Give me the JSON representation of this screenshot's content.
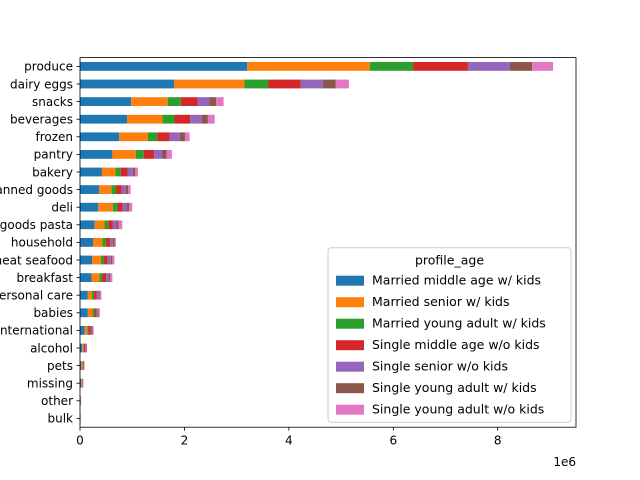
{
  "chart_data": {
    "type": "bar",
    "orientation": "horizontal",
    "stacked": true,
    "categories": [
      "produce",
      "dairy eggs",
      "snacks",
      "beverages",
      "frozen",
      "pantry",
      "bakery",
      "canned goods",
      "deli",
      "dry goods pasta",
      "household",
      "meat seafood",
      "breakfast",
      "personal care",
      "babies",
      "international",
      "alcohol",
      "pets",
      "missing",
      "other",
      "bulk"
    ],
    "series": [
      {
        "name": "Married middle age w/ kids",
        "color": "#1f77b4",
        "values": [
          3200000,
          1800000,
          980000,
          900000,
          750000,
          620000,
          420000,
          370000,
          350000,
          280000,
          250000,
          230000,
          220000,
          150000,
          150000,
          90000,
          40000,
          25000,
          20000,
          8000,
          5000
        ]
      },
      {
        "name": "Married senior w/ kids",
        "color": "#ff7f0e",
        "values": [
          2350000,
          1350000,
          700000,
          680000,
          550000,
          450000,
          260000,
          230000,
          280000,
          190000,
          180000,
          170000,
          150000,
          80000,
          90000,
          50000,
          25000,
          20000,
          15000,
          3000,
          2000
        ]
      },
      {
        "name": "Married young adult w/ kids",
        "color": "#2ca02c",
        "values": [
          830000,
          460000,
          250000,
          230000,
          180000,
          150000,
          100000,
          90000,
          90000,
          70000,
          70000,
          60000,
          60000,
          40000,
          40000,
          20000,
          10000,
          8000,
          6000,
          2000,
          1000
        ]
      },
      {
        "name": "Single middle age w/o kids",
        "color": "#d62728",
        "values": [
          1050000,
          620000,
          320000,
          300000,
          240000,
          200000,
          130000,
          110000,
          100000,
          90000,
          80000,
          70000,
          70000,
          50000,
          40000,
          40000,
          25000,
          15000,
          10000,
          3000,
          2000
        ]
      },
      {
        "name": "Single senior w/o kids",
        "color": "#9467bd",
        "values": [
          800000,
          420000,
          230000,
          220000,
          190000,
          160000,
          100000,
          80000,
          80000,
          70000,
          50000,
          60000,
          50000,
          40000,
          20000,
          20000,
          15000,
          8000,
          6000,
          2000,
          1000
        ]
      },
      {
        "name": "Single young adult w/ kids",
        "color": "#8c564b",
        "values": [
          430000,
          250000,
          130000,
          120000,
          100000,
          80000,
          50000,
          40000,
          40000,
          40000,
          30000,
          30000,
          30000,
          20000,
          20000,
          20000,
          10000,
          5000,
          4000,
          1000,
          1000
        ]
      },
      {
        "name": "Single young adult w/o kids",
        "color": "#e377c2",
        "values": [
          400000,
          250000,
          140000,
          130000,
          90000,
          100000,
          50000,
          50000,
          60000,
          70000,
          30000,
          40000,
          40000,
          30000,
          20000,
          20000,
          10000,
          6000,
          5000,
          2000,
          1000
        ]
      }
    ],
    "xlim": [
      0,
      9500000
    ],
    "xticks": [
      0,
      2000000,
      4000000,
      6000000,
      8000000
    ],
    "xtick_labels": [
      "0",
      "2",
      "4",
      "6",
      "8"
    ],
    "x_offset_label": "1e6",
    "legend": {
      "title": "profile_age",
      "placement": "lower right"
    },
    "grid": false
  }
}
